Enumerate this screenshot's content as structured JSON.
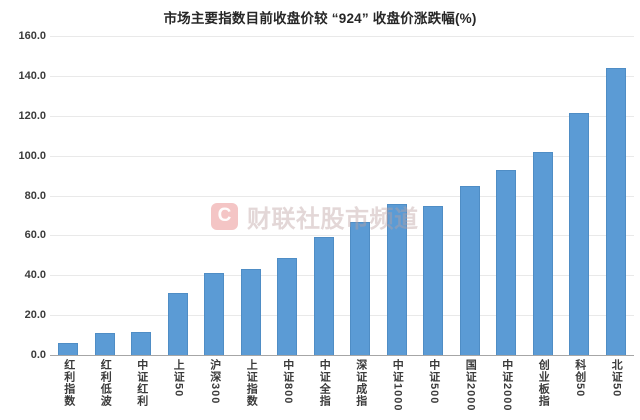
{
  "title": "市场主要指数目前收盘价较 “924” 收盘价涨跌幅(%)",
  "watermark": {
    "logo_letter": "C",
    "text": "财联社股市频道"
  },
  "colors": {
    "bar": "#5b9bd5",
    "gridline": "#e9e9e9",
    "axis_line": "#a6a6a6",
    "label_text": "#3b3b3b",
    "watermark_red": "#dd4a4a"
  },
  "chart_data": {
    "type": "bar",
    "title": "市场主要指数目前收盘价较 “924” 收盘价涨跌幅(%)",
    "xlabel": "",
    "ylabel": "",
    "categories": [
      "红利指数",
      "红利低波",
      "中证红利",
      "上证50",
      "沪深300",
      "上证指数",
      "中证800",
      "中证全指",
      "深证成指",
      "中证1000",
      "中证500",
      "国证2000",
      "中证2000",
      "创业板指",
      "科创50",
      "北证50"
    ],
    "values": [
      6.1,
      11.0,
      11.7,
      30.9,
      41.0,
      43.2,
      48.8,
      59.4,
      66.9,
      75.8,
      74.9,
      84.9,
      92.6,
      101.9,
      121.5,
      144.2
    ],
    "ylim": [
      0,
      160
    ],
    "ytick_interval": 20,
    "ytick_labels": [
      "0.0",
      "20.0",
      "40.0",
      "60.0",
      "80.0",
      "100.0",
      "120.0",
      "140.0",
      "160.0"
    ],
    "grid": true,
    "legend": false,
    "legend_position": "none",
    "x_label_orientation": "vertical"
  }
}
